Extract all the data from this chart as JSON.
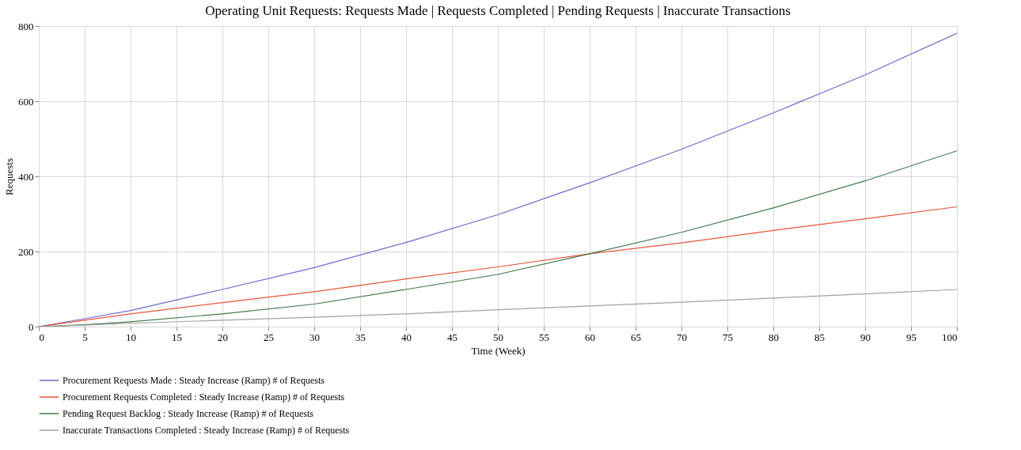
{
  "chart_data": {
    "type": "line",
    "title": "Operating Unit Requests: Requests Made | Requests Completed | Pending Requests | Inaccurate Transactions",
    "xlabel": "Time (Week)",
    "ylabel": "Requests",
    "xlim": [
      0,
      100
    ],
    "xticks": [
      0,
      5,
      10,
      15,
      20,
      25,
      30,
      35,
      40,
      45,
      50,
      55,
      60,
      65,
      70,
      75,
      80,
      85,
      90,
      95,
      100
    ],
    "ylim": [
      0,
      800
    ],
    "yticks": [
      0,
      200,
      400,
      600,
      800
    ],
    "grid": true,
    "legend": "bottom",
    "x": [
      0,
      5,
      10,
      20,
      30,
      40,
      50,
      60,
      70,
      80,
      90,
      100
    ],
    "series": [
      {
        "name": "Procurement Requests Made : Steady Increase (Ramp) # of Requests",
        "color": "#6a6ad0",
        "values": [
          0,
          21,
          43,
          99,
          157,
          224,
          298,
          383,
          472,
          569,
          670,
          781
        ]
      },
      {
        "name": "Procurement Requests Completed : Steady Increase (Ramp) # of Requests",
        "color": "#e8553a",
        "values": [
          0,
          17,
          34,
          64,
          93,
          127,
          159,
          194,
          223,
          256,
          287,
          319
        ]
      },
      {
        "name": "Pending Request Backlog : Steady Increase (Ramp) # of Requests",
        "color": "#3f7a4a",
        "values": [
          0,
          5,
          13,
          34,
          60,
          99,
          139,
          194,
          251,
          316,
          388,
          468
        ]
      },
      {
        "name": "Inaccurate Transactions Completed : Steady Increase (Ramp) # of Requests",
        "color": "#a0a0a0",
        "values": [
          0,
          4,
          9,
          17,
          25,
          34,
          45,
          55,
          65,
          76,
          87,
          99
        ]
      }
    ]
  }
}
